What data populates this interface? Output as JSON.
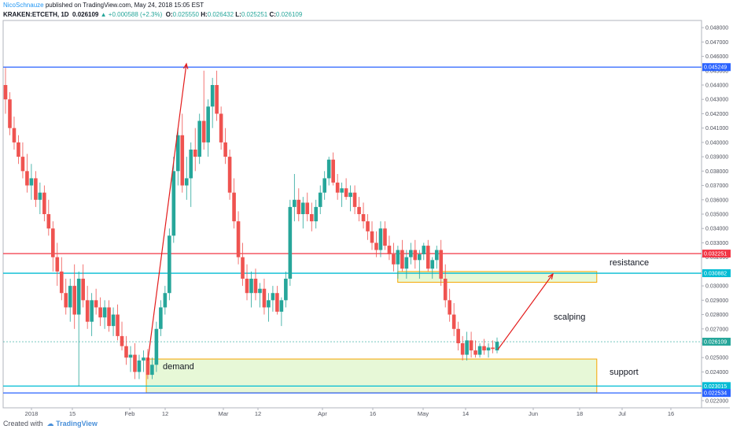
{
  "header": {
    "author": "NicoSchnauze",
    "published": " published on TradingView.com, May 24, 2018 15:05 EST",
    "symbol": "KRAKEN:ETCETH, 1D",
    "last": "0.026109",
    "change": "+0.000588 (+2.3%)",
    "o_label": "O:",
    "o": "0.025550",
    "h_label": "H:",
    "h": "0.026432",
    "l_label": "L:",
    "l": "0.025251",
    "c_label": "C:",
    "c": "0.026109"
  },
  "footer": {
    "created_with": "Created with",
    "brand": "TradingView"
  },
  "colors": {
    "up": "#26a69a",
    "down": "#ef5350",
    "blue_line": "#2962ff",
    "red_line": "#f23645",
    "cyan_line": "#00bcd4",
    "zone_fill": "#dff5c9",
    "zone_border": "#f7a600",
    "arrow": "#e31b1b"
  },
  "chart_data": {
    "type": "candlestick",
    "x_ticks": [
      "2018",
      "15",
      "Feb",
      "12",
      "Mar",
      "12",
      "Apr",
      "16",
      "May",
      "14",
      "Jun",
      "18",
      "Jul",
      "16"
    ],
    "y_ticks": [
      "0.048000",
      "0.047000",
      "0.046000",
      "0.045000",
      "0.044000",
      "0.043000",
      "0.042000",
      "0.041000",
      "0.040000",
      "0.039000",
      "0.038000",
      "0.037000",
      "0.036000",
      "0.035000",
      "0.034000",
      "0.033000",
      "0.032000",
      "0.031000",
      "0.030000",
      "0.029000",
      "0.028000",
      "0.027000",
      "0.026000",
      "0.025000",
      "0.024000",
      "0.023000",
      "0.022000"
    ],
    "ylim": [
      0.0215,
      0.0485
    ],
    "price_lines": [
      {
        "name": "blue-resistance",
        "value": 0.045249,
        "label": "0.045249",
        "color": "#2962ff"
      },
      {
        "name": "red-resistance",
        "value": 0.032251,
        "label": "0.032251",
        "color": "#f23645"
      },
      {
        "name": "cyan-resistance",
        "value": 0.030882,
        "label": "0.030882",
        "color": "#00bcd4"
      },
      {
        "name": "cyan-support",
        "value": 0.023015,
        "label": "0.023015",
        "color": "#00bcd4"
      },
      {
        "name": "blue-support",
        "value": 0.022534,
        "label": "0.022534",
        "color": "#2962ff"
      }
    ],
    "last_price": {
      "value": 0.026109,
      "label": "0.026109"
    },
    "zones": [
      {
        "name": "demand",
        "label": "demand",
        "top": 0.0249,
        "bottom": 0.02255,
        "from": 0.205,
        "to": 0.85
      },
      {
        "name": "resistance",
        "label": "resistance",
        "top": 0.031,
        "bottom": 0.03025,
        "from": 0.565,
        "to": 0.85
      }
    ],
    "labels": {
      "resistance": "resistance",
      "support": "support",
      "scalping": "scalping"
    },
    "ohlc": [
      [
        0.044,
        0.0452,
        0.042,
        0.043
      ],
      [
        0.043,
        0.0435,
        0.0405,
        0.041
      ],
      [
        0.041,
        0.0418,
        0.0395,
        0.04
      ],
      [
        0.04,
        0.0405,
        0.0385,
        0.039
      ],
      [
        0.039,
        0.04,
        0.0375,
        0.038
      ],
      [
        0.038,
        0.0392,
        0.0365,
        0.037
      ],
      [
        0.037,
        0.0385,
        0.036,
        0.0375
      ],
      [
        0.0375,
        0.038,
        0.0355,
        0.036
      ],
      [
        0.036,
        0.0372,
        0.035,
        0.0365
      ],
      [
        0.0365,
        0.037,
        0.0345,
        0.035
      ],
      [
        0.035,
        0.036,
        0.0335,
        0.034
      ],
      [
        0.034,
        0.0345,
        0.031,
        0.032
      ],
      [
        0.032,
        0.033,
        0.03,
        0.031
      ],
      [
        0.031,
        0.032,
        0.029,
        0.0295
      ],
      [
        0.0295,
        0.0305,
        0.028,
        0.0285
      ],
      [
        0.0285,
        0.0305,
        0.0275,
        0.03
      ],
      [
        0.03,
        0.0315,
        0.027,
        0.028
      ],
      [
        0.028,
        0.031,
        0.023,
        0.0305
      ],
      [
        0.0305,
        0.0315,
        0.0285,
        0.029
      ],
      [
        0.029,
        0.03,
        0.027,
        0.0275
      ],
      [
        0.0275,
        0.0295,
        0.0265,
        0.029
      ],
      [
        0.029,
        0.0298,
        0.028,
        0.0285
      ],
      [
        0.0285,
        0.0292,
        0.0272,
        0.0278
      ],
      [
        0.0278,
        0.029,
        0.027,
        0.0285
      ],
      [
        0.0285,
        0.029,
        0.0268,
        0.0272
      ],
      [
        0.0272,
        0.0285,
        0.0265,
        0.028
      ],
      [
        0.028,
        0.0287,
        0.0262,
        0.0265
      ],
      [
        0.0265,
        0.0275,
        0.0255,
        0.0258
      ],
      [
        0.0258,
        0.0265,
        0.0245,
        0.025
      ],
      [
        0.025,
        0.0258,
        0.024,
        0.0252
      ],
      [
        0.0252,
        0.026,
        0.0235,
        0.024
      ],
      [
        0.024,
        0.0252,
        0.0235,
        0.0248
      ],
      [
        0.0248,
        0.0255,
        0.024,
        0.025
      ],
      [
        0.025,
        0.0256,
        0.0235,
        0.0238
      ],
      [
        0.0238,
        0.025,
        0.0235,
        0.0245
      ],
      [
        0.0245,
        0.0275,
        0.024,
        0.027
      ],
      [
        0.027,
        0.029,
        0.0265,
        0.0285
      ],
      [
        0.0285,
        0.03,
        0.028,
        0.0295
      ],
      [
        0.0295,
        0.034,
        0.029,
        0.0335
      ],
      [
        0.0335,
        0.039,
        0.033,
        0.038
      ],
      [
        0.038,
        0.041,
        0.037,
        0.0405
      ],
      [
        0.0405,
        0.042,
        0.0365,
        0.037
      ],
      [
        0.037,
        0.039,
        0.036,
        0.0375
      ],
      [
        0.0375,
        0.04,
        0.0355,
        0.0395
      ],
      [
        0.0395,
        0.041,
        0.038,
        0.039
      ],
      [
        0.039,
        0.042,
        0.0385,
        0.0415
      ],
      [
        0.0415,
        0.045,
        0.0395,
        0.04
      ],
      [
        0.04,
        0.043,
        0.039,
        0.0425
      ],
      [
        0.0425,
        0.0445,
        0.041,
        0.044
      ],
      [
        0.044,
        0.045,
        0.0415,
        0.042
      ],
      [
        0.042,
        0.0425,
        0.0395,
        0.04
      ],
      [
        0.04,
        0.041,
        0.0385,
        0.039
      ],
      [
        0.039,
        0.0395,
        0.036,
        0.0365
      ],
      [
        0.0365,
        0.0375,
        0.034,
        0.0345
      ],
      [
        0.0345,
        0.0352,
        0.0315,
        0.032
      ],
      [
        0.032,
        0.033,
        0.03,
        0.0305
      ],
      [
        0.0305,
        0.0315,
        0.029,
        0.0295
      ],
      [
        0.0295,
        0.031,
        0.0285,
        0.0305
      ],
      [
        0.0305,
        0.0312,
        0.029,
        0.0295
      ],
      [
        0.0295,
        0.0302,
        0.0285,
        0.0298
      ],
      [
        0.0298,
        0.0305,
        0.028,
        0.0285
      ],
      [
        0.0285,
        0.0295,
        0.0275,
        0.029
      ],
      [
        0.029,
        0.03,
        0.0282,
        0.0295
      ],
      [
        0.0295,
        0.03,
        0.028,
        0.0282
      ],
      [
        0.0282,
        0.0292,
        0.0272,
        0.029
      ],
      [
        0.029,
        0.031,
        0.0285,
        0.0305
      ],
      [
        0.0305,
        0.036,
        0.03,
        0.0355
      ],
      [
        0.0355,
        0.0378,
        0.0345,
        0.036
      ],
      [
        0.036,
        0.0368,
        0.0345,
        0.035
      ],
      [
        0.035,
        0.0362,
        0.034,
        0.0358
      ],
      [
        0.0358,
        0.0365,
        0.0345,
        0.035
      ],
      [
        0.035,
        0.0358,
        0.0338,
        0.0345
      ],
      [
        0.0345,
        0.036,
        0.034,
        0.0355
      ],
      [
        0.0355,
        0.037,
        0.035,
        0.0365
      ],
      [
        0.0365,
        0.038,
        0.036,
        0.0375
      ],
      [
        0.0375,
        0.039,
        0.037,
        0.0388
      ],
      [
        0.0388,
        0.0393,
        0.037,
        0.0372
      ],
      [
        0.0372,
        0.0378,
        0.036,
        0.0365
      ],
      [
        0.0365,
        0.0372,
        0.0355,
        0.0368
      ],
      [
        0.0368,
        0.0375,
        0.036,
        0.0362
      ],
      [
        0.0362,
        0.037,
        0.0352,
        0.0365
      ],
      [
        0.0365,
        0.037,
        0.035,
        0.0355
      ],
      [
        0.0355,
        0.0362,
        0.0345,
        0.035
      ],
      [
        0.035,
        0.0358,
        0.034,
        0.0345
      ],
      [
        0.0345,
        0.035,
        0.0332,
        0.0338
      ],
      [
        0.0338,
        0.0345,
        0.0325,
        0.033
      ],
      [
        0.033,
        0.0338,
        0.032,
        0.0325
      ],
      [
        0.0325,
        0.0345,
        0.032,
        0.034
      ],
      [
        0.034,
        0.0345,
        0.0325,
        0.0328
      ],
      [
        0.0328,
        0.0335,
        0.0318,
        0.0322
      ],
      [
        0.0322,
        0.033,
        0.031,
        0.0315
      ],
      [
        0.0315,
        0.0328,
        0.0305,
        0.0325
      ],
      [
        0.0325,
        0.0332,
        0.031,
        0.0312
      ],
      [
        0.0312,
        0.0325,
        0.0305,
        0.032
      ],
      [
        0.032,
        0.033,
        0.0315,
        0.0325
      ],
      [
        0.0325,
        0.0332,
        0.0312,
        0.0318
      ],
      [
        0.0318,
        0.0325,
        0.0305,
        0.0322
      ],
      [
        0.0322,
        0.033,
        0.0318,
        0.0328
      ],
      [
        0.0328,
        0.0332,
        0.031,
        0.0312
      ],
      [
        0.0312,
        0.032,
        0.0305,
        0.0318
      ],
      [
        0.0318,
        0.0328,
        0.0312,
        0.0325
      ],
      [
        0.0325,
        0.0332,
        0.03,
        0.0305
      ],
      [
        0.0305,
        0.0315,
        0.0285,
        0.029
      ],
      [
        0.029,
        0.0298,
        0.0275,
        0.028
      ],
      [
        0.028,
        0.0288,
        0.0265,
        0.027
      ],
      [
        0.027,
        0.0275,
        0.0255,
        0.026
      ],
      [
        0.026,
        0.0265,
        0.0248,
        0.0252
      ],
      [
        0.0252,
        0.0268,
        0.0248,
        0.0262
      ],
      [
        0.0262,
        0.0268,
        0.025,
        0.0255
      ],
      [
        0.0255,
        0.0262,
        0.025,
        0.0252
      ],
      [
        0.0252,
        0.026,
        0.025,
        0.0258
      ],
      [
        0.0258,
        0.0263,
        0.0252,
        0.0255
      ],
      [
        0.0255,
        0.026,
        0.025,
        0.0257
      ],
      [
        0.0257,
        0.0262,
        0.0253,
        0.0256
      ],
      [
        0.0255,
        0.0264,
        0.0253,
        0.0261
      ]
    ]
  }
}
